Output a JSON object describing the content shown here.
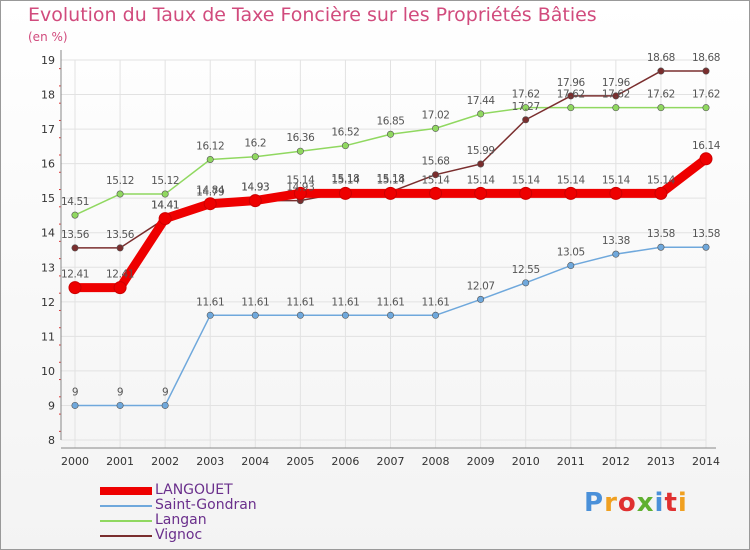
{
  "title": "Evolution du Taux de Taxe Foncière sur les Propriétés Bâties",
  "subtitle": "(en %)",
  "chart_data": {
    "type": "line",
    "x": [
      "2000",
      "2001",
      "2002",
      "2003",
      "2004",
      "2005",
      "2006",
      "2007",
      "2008",
      "2009",
      "2010",
      "2011",
      "2012",
      "2013",
      "2014"
    ],
    "ylim": [
      8,
      19
    ],
    "yticks": [
      8,
      9,
      10,
      11,
      12,
      13,
      14,
      15,
      16,
      17,
      18,
      19
    ],
    "series": [
      {
        "name": "LANGOUET",
        "color": "#ee0000",
        "values": [
          12.41,
          12.41,
          14.41,
          14.84,
          14.93,
          15.14,
          15.14,
          15.14,
          15.14,
          15.14,
          15.14,
          15.14,
          15.14,
          15.14,
          16.14
        ],
        "labels": [
          "12.41",
          "12.41",
          "14.41",
          "14.84",
          "14.93",
          "15.14",
          "15.14",
          "15.14",
          "15.14",
          "15.14",
          "15.14",
          "15.14",
          "15.14",
          "15.14",
          "16.14"
        ]
      },
      {
        "name": "Saint-Gondran",
        "color": "#6fa8dc",
        "values": [
          9,
          9,
          9,
          11.61,
          11.61,
          11.61,
          11.61,
          11.61,
          11.61,
          12.07,
          12.55,
          13.05,
          13.38,
          13.58,
          13.58
        ],
        "labels": [
          "9",
          "9",
          "9",
          "11.61",
          "11.61",
          "11.61",
          "11.61",
          "11.61",
          "11.61",
          "12.07",
          "12.55",
          "13.05",
          "13.38",
          "13.58",
          "13.58"
        ]
      },
      {
        "name": "Langan",
        "color": "#90d860",
        "values": [
          14.51,
          15.12,
          15.12,
          16.12,
          16.2,
          16.36,
          16.52,
          16.85,
          17.02,
          17.44,
          17.62,
          17.62,
          17.62,
          17.62,
          17.62
        ],
        "labels": [
          "14.51",
          "15.12",
          "15.12",
          "16.12",
          "16.2",
          "16.36",
          "16.52",
          "16.85",
          "17.02",
          "17.44",
          "17.62",
          "17.62",
          "17.62",
          "17.62",
          "17.62"
        ]
      },
      {
        "name": "Vignoc",
        "color": "#7a2e2e",
        "values": [
          13.56,
          13.56,
          14.41,
          14.79,
          14.93,
          14.93,
          15.18,
          15.18,
          15.68,
          15.99,
          17.27,
          17.96,
          17.96,
          18.68,
          18.68
        ],
        "labels": [
          "13.56",
          "13.56",
          "14.41",
          "14.79",
          "14.93",
          "14.93",
          "15.18",
          "15.18",
          "15.68",
          "15.99",
          "17.27",
          "17.96",
          "17.96",
          "18.68",
          "18.68"
        ]
      }
    ]
  },
  "legend": {
    "items": [
      {
        "name": "LANGOUET",
        "color": "#ee0000"
      },
      {
        "name": "Saint-Gondran",
        "color": "#6fa8dc"
      },
      {
        "name": "Langan",
        "color": "#90d860"
      },
      {
        "name": "Vignoc",
        "color": "#7a2e2e"
      }
    ]
  },
  "logo": {
    "text": "Proxiti",
    "colors": [
      "#4a90d9",
      "#f0a020",
      "#e03030",
      "#60b030",
      "#4a90d9",
      "#e03030",
      "#f0a020"
    ]
  }
}
